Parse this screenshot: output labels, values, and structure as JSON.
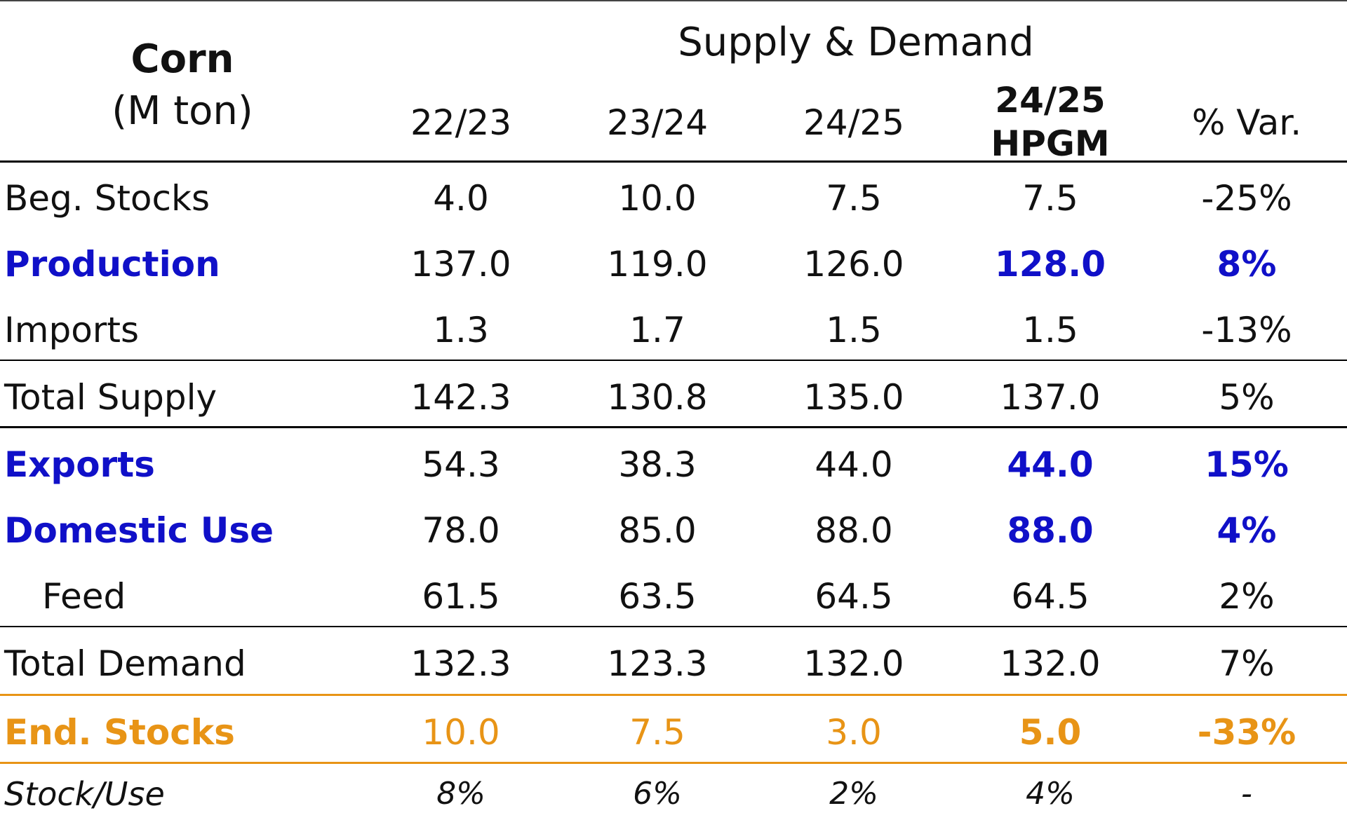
{
  "table": {
    "corner_title": "Corn",
    "corner_unit": "(M ton)",
    "group_title": "Supply & Demand",
    "columns": [
      {
        "line1": "22/23",
        "line2": ""
      },
      {
        "line1": "23/24",
        "line2": ""
      },
      {
        "line1": "24/25",
        "line2": ""
      },
      {
        "line1": "24/25",
        "line2": "HPGM"
      },
      {
        "line1": "% Var.",
        "line2": ""
      }
    ],
    "rows": [
      {
        "label": "Beg. Stocks",
        "style": "normal",
        "values": [
          "4.0",
          "10.0",
          "7.5",
          "7.5",
          "-25%"
        ]
      },
      {
        "label": "Production",
        "style": "blue",
        "values": [
          "137.0",
          "119.0",
          "126.0",
          "128.0",
          "8%"
        ]
      },
      {
        "label": "Imports",
        "style": "normal",
        "values": [
          "1.3",
          "1.7",
          "1.5",
          "1.5",
          "-13%"
        ]
      },
      {
        "label": "Total Supply",
        "style": "normal",
        "values": [
          "142.3",
          "130.8",
          "135.0",
          "137.0",
          "5%"
        ]
      },
      {
        "label": "Exports",
        "style": "blue",
        "values": [
          "54.3",
          "38.3",
          "44.0",
          "44.0",
          "15%"
        ]
      },
      {
        "label": "Domestic Use",
        "style": "blue",
        "values": [
          "78.0",
          "85.0",
          "88.0",
          "88.0",
          "4%"
        ]
      },
      {
        "label": "Feed",
        "style": "indent",
        "values": [
          "61.5",
          "63.5",
          "64.5",
          "64.5",
          "2%"
        ]
      },
      {
        "label": "Total Demand",
        "style": "normal",
        "values": [
          "132.3",
          "123.3",
          "132.0",
          "132.0",
          "7%"
        ]
      },
      {
        "label": "End. Stocks",
        "style": "orange",
        "values": [
          "10.0",
          "7.5",
          "3.0",
          "5.0",
          "-33%"
        ]
      },
      {
        "label": "Stock/Use",
        "style": "italic",
        "values": [
          "8%",
          "6%",
          "2%",
          "4%",
          "-"
        ]
      }
    ]
  },
  "colors": {
    "highlight_blue": "#1010c8",
    "highlight_orange": "#e89416",
    "text": "#111111"
  }
}
